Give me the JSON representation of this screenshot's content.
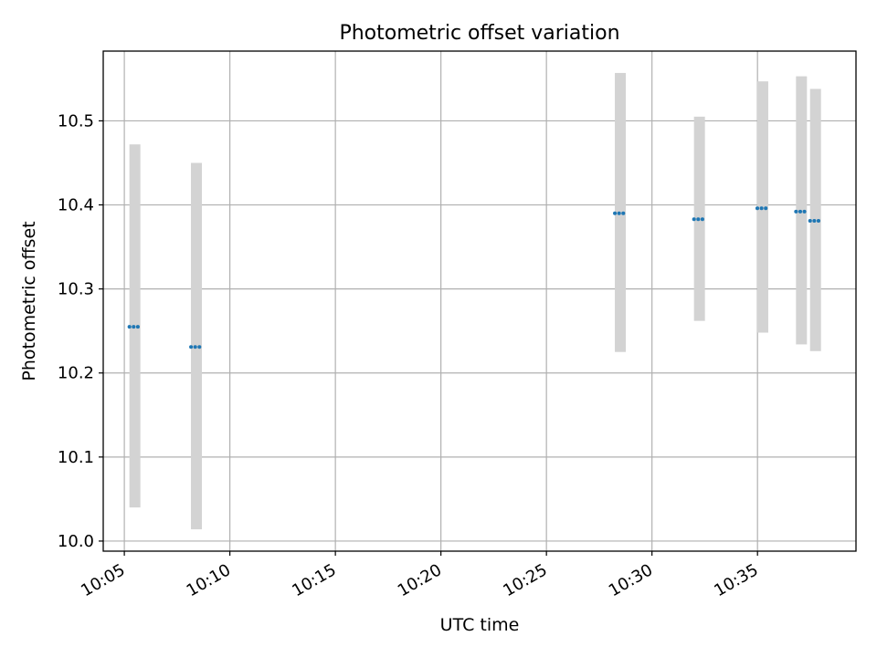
{
  "chart_data": {
    "type": "scatter",
    "title": "Photometric offset variation",
    "xlabel": "UTC time",
    "ylabel": "Photometric offset",
    "x_ticks": [
      "10:05",
      "10:10",
      "10:15",
      "10:20",
      "10:25",
      "10:30",
      "10:35"
    ],
    "y_ticks": [
      "10.0",
      "10.1",
      "10.2",
      "10.3",
      "10.4",
      "10.5"
    ],
    "xlim": [
      "10:04:00",
      "10:39:40"
    ],
    "ylim": [
      9.988,
      10.583
    ],
    "grid": true,
    "colors": {
      "point": "#1f77b4",
      "error_band": "#d3d3d3",
      "grid": "#b0b0b0",
      "axes": "#000000"
    },
    "series": [
      {
        "points": [
          {
            "time": "10:05:30",
            "y": 10.255,
            "y_low": 10.04,
            "y_high": 10.472
          },
          {
            "time": "10:08:25",
            "y": 10.231,
            "y_low": 10.014,
            "y_high": 10.45
          },
          {
            "time": "10:28:30",
            "y": 10.39,
            "y_low": 10.225,
            "y_high": 10.557
          },
          {
            "time": "10:32:15",
            "y": 10.383,
            "y_low": 10.262,
            "y_high": 10.505
          },
          {
            "time": "10:35:15",
            "y": 10.396,
            "y_low": 10.248,
            "y_high": 10.547
          },
          {
            "time": "10:37:05",
            "y": 10.392,
            "y_low": 10.234,
            "y_high": 10.553
          },
          {
            "time": "10:37:45",
            "y": 10.381,
            "y_low": 10.226,
            "y_high": 10.538
          }
        ]
      }
    ]
  }
}
